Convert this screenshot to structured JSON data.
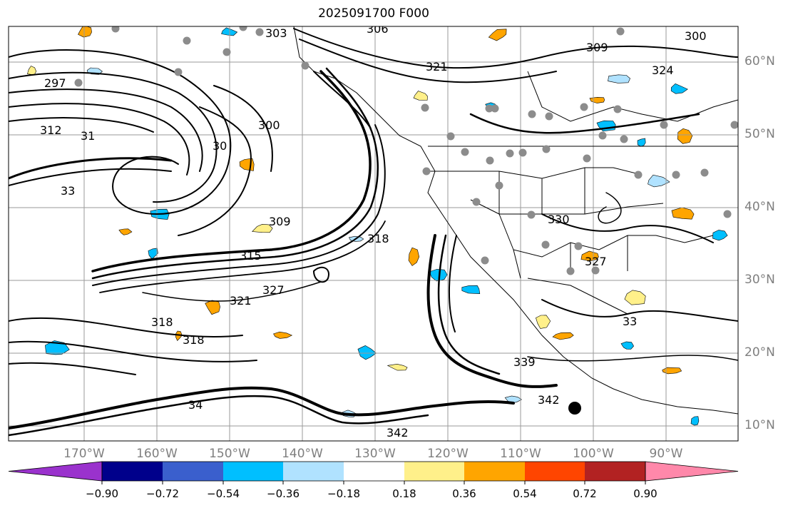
{
  "title": "2025091700 F000",
  "longitude_labels": [
    "170°W",
    "160°W",
    "150°W",
    "140°W",
    "130°W",
    "120°W",
    "110°W",
    "100°W",
    "90°W"
  ],
  "latitude_labels": [
    "60°N",
    "50°N",
    "40°N",
    "30°N",
    "20°N",
    "10°N"
  ],
  "colorbar": {
    "tick_labels": [
      "−0.90",
      "−0.72",
      "−0.54",
      "−0.36",
      "−0.18",
      "0.18",
      "0.36",
      "0.54",
      "0.72",
      "0.90"
    ],
    "colors": {
      "below_min": "#9a32cd",
      "bins": [
        "#00008b",
        "#3a5fcd",
        "#00bfff",
        "#b0e2ff",
        "#ffffff",
        "#fff08a",
        "#ffa500",
        "#ff4500",
        "#b22222"
      ],
      "above_max": "#ff88aa"
    }
  },
  "contour_labels": [
    "303",
    "306",
    "300",
    "297",
    "321",
    "309",
    "324",
    "312",
    "31",
    "300",
    "30",
    "330",
    "33",
    "309",
    "318",
    "315",
    "327",
    "318",
    "318",
    "321",
    "327",
    "342",
    "339",
    "342",
    "33",
    "34"
  ],
  "colors": {
    "contour": "#000000",
    "grid": "#9a9a9a",
    "station_marker": "#8c8c8c",
    "axis_label": "#7f7f7f"
  }
}
